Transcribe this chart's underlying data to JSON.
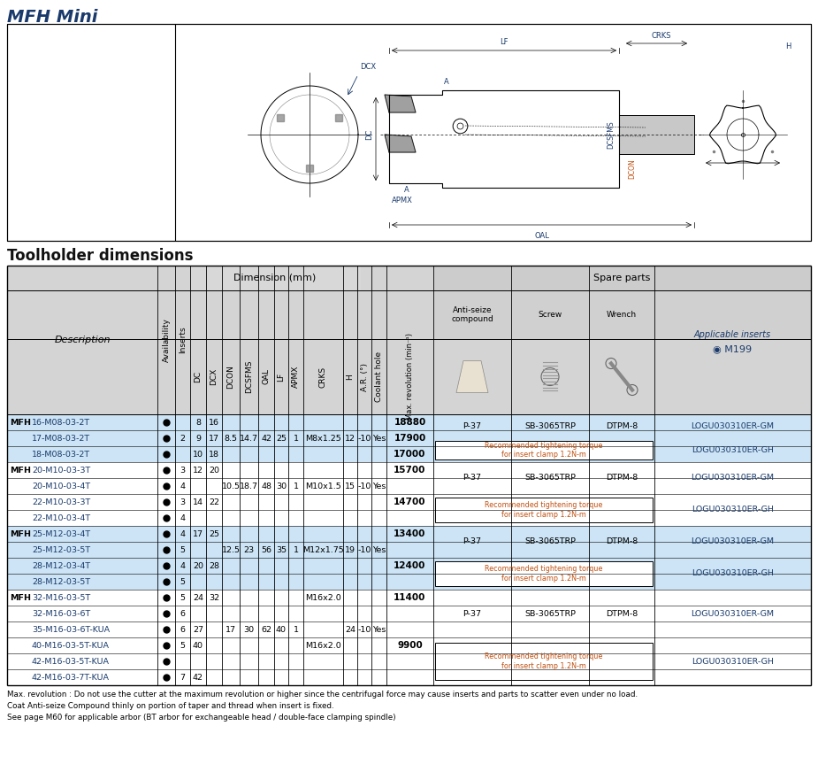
{
  "title": "MFH Mini",
  "section_title": "Toolholder dimensions",
  "title_color": "#1a3a6b",
  "header_bg": "#d4d4d4",
  "header_bg2": "#c8c8c8",
  "row_bg_blue": "#cce4f5",
  "row_bg_white": "#ffffff",
  "text_color_blue": "#1a3a6b",
  "text_color_orange": "#c05010",
  "text_color_dark": "#111111",
  "footnotes": [
    "Max. revolution : Do not use the cutter at the maximum revolution or higher since the centrifugal force may cause inserts and parts to scatter even under no load.",
    "Coat Anti-seize Compound thinly on portion of taper and thread when insert is fixed.",
    "See page M60 for applicable arbor (BT arbor for exchangeable head / double-face clamping spindle)"
  ],
  "rows": [
    {
      "group": "MFH",
      "desc": "16-M08-03-2T",
      "avail": true,
      "inserts": "",
      "dc": "8",
      "dcx": "16",
      "dcon": "",
      "dcsfms": "",
      "oal": "",
      "lf": "",
      "apmx": "",
      "crks": "",
      "h": "",
      "ar": "",
      "coolant": "",
      "maxrev": "18880",
      "bg": "blue"
    },
    {
      "group": "",
      "desc": "17-M08-03-2T",
      "avail": true,
      "inserts": "2",
      "dc": "9",
      "dcx": "17",
      "dcon": "8.5",
      "dcsfms": "14.7",
      "oal": "42",
      "lf": "25",
      "apmx": "1",
      "crks": "M8x1.25",
      "h": "12",
      "ar": "-10",
      "coolant": "Yes",
      "maxrev": "17900",
      "bg": "blue"
    },
    {
      "group": "",
      "desc": "18-M08-03-2T",
      "avail": true,
      "inserts": "",
      "dc": "10",
      "dcx": "18",
      "dcon": "",
      "dcsfms": "",
      "oal": "",
      "lf": "",
      "apmx": "",
      "crks": "",
      "h": "",
      "ar": "",
      "coolant": "",
      "maxrev": "17000",
      "bg": "blue"
    },
    {
      "group": "MFH",
      "desc": "20-M10-03-3T",
      "avail": true,
      "inserts": "3",
      "dc": "12",
      "dcx": "20",
      "dcon": "",
      "dcsfms": "",
      "oal": "",
      "lf": "",
      "apmx": "",
      "crks": "",
      "h": "",
      "ar": "",
      "coolant": "",
      "maxrev": "15700",
      "bg": "white"
    },
    {
      "group": "",
      "desc": "20-M10-03-4T",
      "avail": true,
      "inserts": "4",
      "dc": "",
      "dcx": "",
      "dcon": "10.5",
      "dcsfms": "18.7",
      "oal": "48",
      "lf": "30",
      "apmx": "1",
      "crks": "M10x1.5",
      "h": "15",
      "ar": "-10",
      "coolant": "Yes",
      "maxrev": "",
      "bg": "white"
    },
    {
      "group": "",
      "desc": "22-M10-03-3T",
      "avail": true,
      "inserts": "3",
      "dc": "14",
      "dcx": "22",
      "dcon": "",
      "dcsfms": "",
      "oal": "",
      "lf": "",
      "apmx": "",
      "crks": "",
      "h": "",
      "ar": "",
      "coolant": "",
      "maxrev": "14700",
      "bg": "white"
    },
    {
      "group": "",
      "desc": "22-M10-03-4T",
      "avail": true,
      "inserts": "4",
      "dc": "",
      "dcx": "",
      "dcon": "",
      "dcsfms": "",
      "oal": "",
      "lf": "",
      "apmx": "",
      "crks": "",
      "h": "",
      "ar": "",
      "coolant": "",
      "maxrev": "",
      "bg": "white"
    },
    {
      "group": "MFH",
      "desc": "25-M12-03-4T",
      "avail": true,
      "inserts": "4",
      "dc": "17",
      "dcx": "25",
      "dcon": "",
      "dcsfms": "",
      "oal": "",
      "lf": "",
      "apmx": "",
      "crks": "",
      "h": "",
      "ar": "",
      "coolant": "",
      "maxrev": "13400",
      "bg": "blue"
    },
    {
      "group": "",
      "desc": "25-M12-03-5T",
      "avail": true,
      "inserts": "5",
      "dc": "",
      "dcx": "",
      "dcon": "12.5",
      "dcsfms": "23",
      "oal": "56",
      "lf": "35",
      "apmx": "1",
      "crks": "M12x1.75",
      "h": "19",
      "ar": "-10",
      "coolant": "Yes",
      "maxrev": "",
      "bg": "blue"
    },
    {
      "group": "",
      "desc": "28-M12-03-4T",
      "avail": true,
      "inserts": "4",
      "dc": "20",
      "dcx": "28",
      "dcon": "",
      "dcsfms": "",
      "oal": "",
      "lf": "",
      "apmx": "",
      "crks": "",
      "h": "",
      "ar": "",
      "coolant": "",
      "maxrev": "12400",
      "bg": "blue"
    },
    {
      "group": "",
      "desc": "28-M12-03-5T",
      "avail": true,
      "inserts": "5",
      "dc": "",
      "dcx": "",
      "dcon": "",
      "dcsfms": "",
      "oal": "",
      "lf": "",
      "apmx": "",
      "crks": "",
      "h": "",
      "ar": "",
      "coolant": "",
      "maxrev": "",
      "bg": "blue"
    },
    {
      "group": "MFH",
      "desc": "32-M16-03-5T",
      "avail": true,
      "inserts": "5",
      "dc": "24",
      "dcx": "32",
      "dcon": "",
      "dcsfms": "",
      "oal": "",
      "lf": "",
      "apmx": "",
      "crks": "M16x2.0",
      "h": "",
      "ar": "",
      "coolant": "",
      "maxrev": "11400",
      "bg": "white"
    },
    {
      "group": "",
      "desc": "32-M16-03-6T",
      "avail": true,
      "inserts": "6",
      "dc": "",
      "dcx": "",
      "dcon": "",
      "dcsfms": "",
      "oal": "",
      "lf": "",
      "apmx": "",
      "crks": "",
      "h": "",
      "ar": "",
      "coolant": "",
      "maxrev": "",
      "bg": "white"
    },
    {
      "group": "",
      "desc": "35-M16-03-6T-KUA",
      "avail": true,
      "inserts": "6",
      "dc": "27",
      "dcx": "",
      "dcon": "17",
      "dcsfms": "30",
      "oal": "62",
      "lf": "40",
      "apmx": "1",
      "crks": "",
      "h": "24",
      "ar": "-10",
      "coolant": "Yes",
      "maxrev": "",
      "bg": "white"
    },
    {
      "group": "",
      "desc": "40-M16-03-5T-KUA",
      "avail": true,
      "inserts": "5",
      "dc": "40",
      "dcx": "",
      "dcon": "",
      "dcsfms": "",
      "oal": "",
      "lf": "",
      "apmx": "",
      "crks": "M16x2.0",
      "h": "",
      "ar": "",
      "coolant": "",
      "maxrev": "9900",
      "bg": "white"
    },
    {
      "group": "",
      "desc": "42-M16-03-5T-KUA",
      "avail": true,
      "inserts": "",
      "dc": "",
      "dcx": "",
      "dcon": "",
      "dcsfms": "",
      "oal": "",
      "lf": "",
      "apmx": "",
      "crks": "",
      "h": "",
      "ar": "",
      "coolant": "",
      "maxrev": "",
      "bg": "white"
    },
    {
      "group": "",
      "desc": "42-M16-03-7T-KUA",
      "avail": true,
      "inserts": "7",
      "dc": "42",
      "dcx": "",
      "dcon": "",
      "dcsfms": "",
      "oal": "",
      "lf": "",
      "apmx": "",
      "crks": "",
      "h": "",
      "ar": "",
      "coolant": "",
      "maxrev": "",
      "bg": "white"
    }
  ],
  "spare_groups": [
    {
      "r_start": 0,
      "r_end": 2
    },
    {
      "r_start": 3,
      "r_end": 6
    },
    {
      "r_start": 7,
      "r_end": 10
    },
    {
      "r_start": 11,
      "r_end": 16
    }
  ]
}
